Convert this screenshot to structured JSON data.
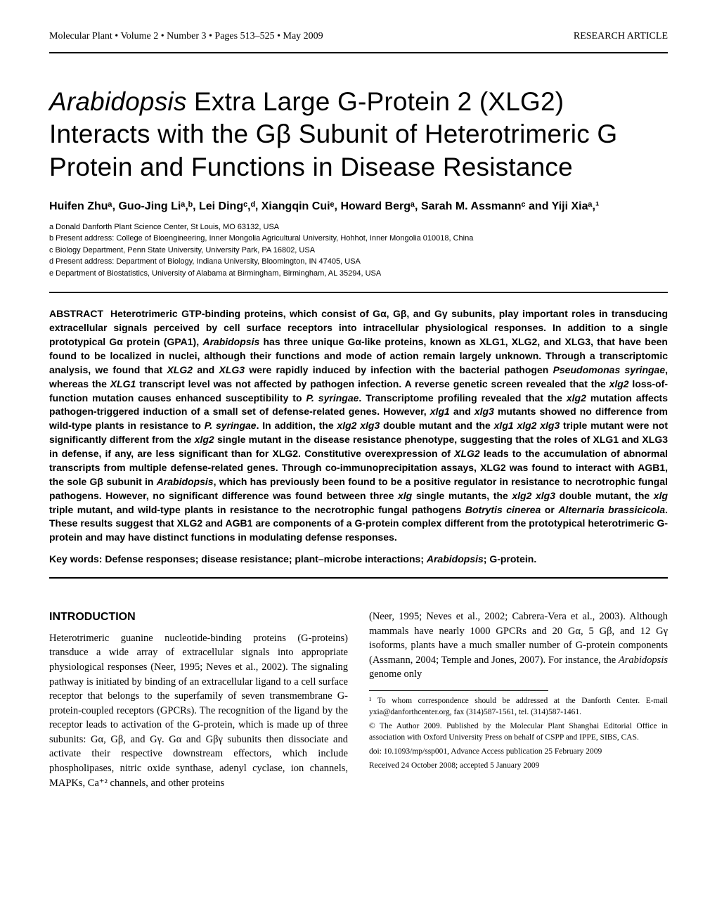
{
  "page": {
    "running_head_left": "Molecular Plant • Volume 2 • Number 3 • Pages 513–525 • May 2009",
    "running_head_right": "RESEARCH ARTICLE",
    "colors": {
      "text": "#000000",
      "background": "#ffffff",
      "rule": "#000000"
    },
    "fonts": {
      "body_family": "Georgia, 'Times New Roman', serif",
      "heading_family": "'Helvetica Neue', Helvetica, Arial, sans-serif",
      "title_size_pt": 28,
      "author_size_pt": 12,
      "affil_size_pt": 8,
      "abstract_size_pt": 10.5,
      "body_size_pt": 10.5,
      "footnote_size_pt": 8.5
    }
  },
  "title": {
    "prefix_italic": "Arabidopsis",
    "rest": " Extra Large G-Protein 2 (XLG2) Interacts with the Gβ Subunit of Heterotrimeric G Protein and Functions in Disease Resistance"
  },
  "authors_line": "Huifen Zhuᵃ, Guo-Jing Liᵃ,ᵇ, Lei Dingᶜ,ᵈ, Xiangqin Cuiᵉ, Howard Bergᵃ, Sarah M. Assmannᶜ and Yiji Xiaᵃ,¹",
  "affiliations": {
    "a": "a  Donald Danforth Plant Science Center, St Louis, MO 63132, USA",
    "b": "b  Present address: College of Bioengineering, Inner Mongolia Agricultural University, Hohhot, Inner Mongolia 010018, China",
    "c": "c  Biology Department, Penn State University, University Park, PA 16802, USA",
    "d": "d  Present address: Department of Biology, Indiana University, Bloomington, IN 47405, USA",
    "e": "e  Department of Biostatistics, University of Alabama at Birmingham, Birmingham, AL 35294, USA"
  },
  "abstract": {
    "label": "ABSTRACT",
    "text_parts": [
      "Heterotrimeric GTP-binding proteins, which consist of Gα, Gβ, and Gγ subunits, play important roles in transducing extracellular signals perceived by cell surface receptors into intracellular physiological responses. In addition to a single prototypical Gα protein (GPA1), ",
      "Arabidopsis",
      " has three unique Gα-like proteins, known as XLG1, XLG2, and XLG3, that have been found to be localized in nuclei, although their functions and mode of action remain largely unknown. Through a transcriptomic analysis, we found that ",
      "XLG2",
      " and ",
      "XLG3",
      " were rapidly induced by infection with the bacterial pathogen ",
      "Pseudomonas syringae",
      ", whereas the ",
      "XLG1",
      " transcript level was not affected by pathogen infection. A reverse genetic screen revealed that the ",
      "xlg2",
      " loss-of-function mutation causes enhanced susceptibility to ",
      "P. syringae",
      ". Transcriptome profiling revealed that the ",
      "xlg2",
      " mutation affects pathogen-triggered induction of a small set of defense-related genes. However, ",
      "xlg1",
      " and ",
      "xlg3",
      " mutants showed no difference from wild-type plants in resistance to ",
      "P. syringae",
      ". In addition, the ",
      "xlg2 xlg3",
      " double mutant and the ",
      "xlg1 xlg2 xlg3",
      " triple mutant were not significantly different from the ",
      "xlg2",
      " single mutant in the disease resistance phenotype, suggesting that the roles of XLG1 and XLG3 in defense, if any, are less significant than for XLG2. Constitutive overexpression of ",
      "XLG2",
      " leads to the accumulation of abnormal transcripts from multiple defense-related genes. Through co-immunoprecipitation assays, XLG2 was found to interact with AGB1, the sole Gβ subunit in ",
      "Arabidopsis",
      ", which has previously been found to be a positive regulator in resistance to necrotrophic fungal pathogens. However, no significant difference was found between three ",
      "xlg",
      " single mutants, the ",
      "xlg2 xlg3",
      " double mutant, the ",
      "xlg",
      " triple mutant, and wild-type plants in resistance to the necrotrophic fungal pathogens ",
      "Botrytis cinerea",
      " or ",
      "Alternaria brassicicola",
      ". These results suggest that XLG2 and AGB1 are components of a G-protein complex different from the prototypical heterotrimeric G-protein and may have distinct functions in modulating defense responses."
    ],
    "italic_indices": [
      1,
      3,
      5,
      7,
      9,
      11,
      13,
      15,
      17,
      19,
      21,
      23,
      25,
      27,
      29,
      31,
      33,
      35,
      37,
      39,
      41,
      43
    ]
  },
  "keywords": {
    "label": "Key words:",
    "text": "   Defense responses; disease resistance; plant–microbe interactions; ",
    "italic": "Arabidopsis",
    "tail": "; G-protein."
  },
  "introduction": {
    "heading": "INTRODUCTION",
    "left_col": "Heterotrimeric guanine nucleotide-binding proteins (G-proteins) transduce a wide array of extracellular signals into appropriate physiological responses (Neer, 1995; Neves et al., 2002). The signaling pathway is initiated by binding of an extracellular ligand to a cell surface receptor that belongs to the superfamily of seven transmembrane G-protein-coupled receptors (GPCRs). The recognition of the ligand by the receptor leads to activation of the G-protein, which is made up of three subunits: Gα, Gβ, and Gγ. Gα and Gβγ subunits then dissociate and activate their respective downstream effectors, which include phospholipases, nitric oxide synthase, adenyl cyclase, ion channels, MAPKs, Ca⁺² channels, and other proteins",
    "right_col_1": "(Neer, 1995; Neves et al., 2002; Cabrera-Vera et al., 2003). Although mammals have nearly 1000 GPCRs and 20 Gα, 5 Gβ, and 12 Gγ isoforms, plants have a much smaller number of G-protein components (Assmann, 2004; Temple and Jones, 2007). For instance, the ",
    "right_col_italic": "Arabidopsis",
    "right_col_2": " genome only"
  },
  "footnotes": {
    "f1": "¹ To whom correspondence should be addressed at the Danforth Center. E-mail yxia@danforthcenter.org, fax (314)587-1561, tel. (314)587-1461.",
    "f2": "© The Author 2009. Published by the Molecular Plant Shanghai Editorial Office in association with Oxford University Press on behalf of CSPP and IPPE, SIBS, CAS.",
    "f3": "doi: 10.1093/mp/ssp001, Advance Access publication 25 February 2009",
    "f4": "Received 24 October 2008; accepted 5 January 2009"
  }
}
